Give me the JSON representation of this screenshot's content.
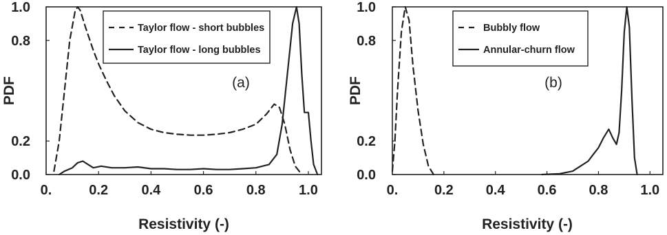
{
  "chart_data": [
    {
      "type": "line",
      "panel_label": "(a)",
      "xlabel": "Resistivity (-)",
      "ylabel": "PDF",
      "xlim": [
        0,
        1.05
      ],
      "ylim": [
        0,
        1.0
      ],
      "x_ticks": [
        {
          "value": 0.0,
          "label": "0."
        },
        {
          "value": 0.2,
          "label": "0.2"
        },
        {
          "value": 0.4,
          "label": "0.4"
        },
        {
          "value": 0.6,
          "label": "0.6"
        },
        {
          "value": 0.8,
          "label": "0.8"
        },
        {
          "value": 1.0,
          "label": "1.0"
        }
      ],
      "y_ticks": [
        {
          "value": 0.0,
          "label": "0.0"
        },
        {
          "value": 0.2,
          "label": "0.2"
        },
        {
          "value": 0.8,
          "label": "0.8"
        },
        {
          "value": 1.0,
          "label": "1.0"
        }
      ],
      "grid": false,
      "legend_position": "top-right",
      "series": [
        {
          "name": "Taylor flow - short bubbles",
          "style": "dashed",
          "color": "#222222",
          "points": [
            [
              0.03,
              0.02
            ],
            [
              0.05,
              0.2
            ],
            [
              0.07,
              0.5
            ],
            [
              0.09,
              0.8
            ],
            [
              0.11,
              0.97
            ],
            [
              0.12,
              1.0
            ],
            [
              0.13,
              0.98
            ],
            [
              0.15,
              0.88
            ],
            [
              0.18,
              0.74
            ],
            [
              0.2,
              0.66
            ],
            [
              0.23,
              0.56
            ],
            [
              0.26,
              0.47
            ],
            [
              0.3,
              0.38
            ],
            [
              0.35,
              0.31
            ],
            [
              0.4,
              0.27
            ],
            [
              0.45,
              0.25
            ],
            [
              0.5,
              0.24
            ],
            [
              0.55,
              0.235
            ],
            [
              0.6,
              0.235
            ],
            [
              0.65,
              0.24
            ],
            [
              0.7,
              0.25
            ],
            [
              0.75,
              0.27
            ],
            [
              0.8,
              0.3
            ],
            [
              0.84,
              0.36
            ],
            [
              0.87,
              0.42
            ],
            [
              0.89,
              0.4
            ],
            [
              0.91,
              0.3
            ],
            [
              0.93,
              0.15
            ],
            [
              0.95,
              0.05
            ],
            [
              0.97,
              0.01
            ]
          ]
        },
        {
          "name": "Taylor flow - long bubbles",
          "style": "solid",
          "color": "#222222",
          "points": [
            [
              0.05,
              0.0
            ],
            [
              0.07,
              0.02
            ],
            [
              0.1,
              0.04
            ],
            [
              0.12,
              0.07
            ],
            [
              0.14,
              0.08
            ],
            [
              0.16,
              0.06
            ],
            [
              0.18,
              0.04
            ],
            [
              0.21,
              0.05
            ],
            [
              0.25,
              0.04
            ],
            [
              0.3,
              0.04
            ],
            [
              0.35,
              0.045
            ],
            [
              0.4,
              0.035
            ],
            [
              0.45,
              0.035
            ],
            [
              0.5,
              0.03
            ],
            [
              0.55,
              0.03
            ],
            [
              0.6,
              0.035
            ],
            [
              0.65,
              0.03
            ],
            [
              0.7,
              0.03
            ],
            [
              0.75,
              0.035
            ],
            [
              0.8,
              0.04
            ],
            [
              0.85,
              0.06
            ],
            [
              0.88,
              0.12
            ],
            [
              0.9,
              0.3
            ],
            [
              0.92,
              0.6
            ],
            [
              0.94,
              0.9
            ],
            [
              0.955,
              1.0
            ],
            [
              0.965,
              0.9
            ],
            [
              0.975,
              0.6
            ],
            [
              0.985,
              0.37
            ],
            [
              1.0,
              0.37
            ],
            [
              1.01,
              0.2
            ],
            [
              1.02,
              0.06
            ],
            [
              1.035,
              0.0
            ]
          ]
        }
      ]
    },
    {
      "type": "line",
      "panel_label": "(b)",
      "xlabel": "Resistivity (-)",
      "ylabel": "PDF",
      "xlim": [
        0,
        1.05
      ],
      "ylim": [
        0,
        1.0
      ],
      "x_ticks": [
        {
          "value": 0.0,
          "label": "0."
        },
        {
          "value": 0.2,
          "label": "0.2"
        },
        {
          "value": 0.4,
          "label": "0.4"
        },
        {
          "value": 0.6,
          "label": "0.6"
        },
        {
          "value": 0.8,
          "label": "0.8"
        },
        {
          "value": 1.0,
          "label": "1.0"
        }
      ],
      "y_ticks": [
        {
          "value": 0.0,
          "label": "0.0"
        },
        {
          "value": 0.2,
          "label": "0.2"
        },
        {
          "value": 0.8,
          "label": "0.8"
        },
        {
          "value": 1.0,
          "label": "1.0"
        }
      ],
      "grid": false,
      "legend_position": "top-left",
      "series": [
        {
          "name": "Bubbly flow",
          "style": "dashed",
          "color": "#222222",
          "points": [
            [
              0.0,
              0.02
            ],
            [
              0.01,
              0.2
            ],
            [
              0.02,
              0.5
            ],
            [
              0.035,
              0.85
            ],
            [
              0.05,
              1.0
            ],
            [
              0.065,
              0.92
            ],
            [
              0.08,
              0.65
            ],
            [
              0.1,
              0.38
            ],
            [
              0.12,
              0.18
            ],
            [
              0.14,
              0.05
            ],
            [
              0.16,
              0.0
            ]
          ]
        },
        {
          "name": "Annular-churn flow",
          "style": "solid",
          "color": "#222222",
          "points": [
            [
              0.58,
              0.0
            ],
            [
              0.65,
              0.005
            ],
            [
              0.7,
              0.02
            ],
            [
              0.73,
              0.05
            ],
            [
              0.76,
              0.08
            ],
            [
              0.78,
              0.12
            ],
            [
              0.8,
              0.16
            ],
            [
              0.82,
              0.22
            ],
            [
              0.84,
              0.27
            ],
            [
              0.855,
              0.22
            ],
            [
              0.87,
              0.18
            ],
            [
              0.88,
              0.25
            ],
            [
              0.89,
              0.5
            ],
            [
              0.9,
              0.85
            ],
            [
              0.91,
              1.0
            ],
            [
              0.92,
              0.88
            ],
            [
              0.93,
              0.45
            ],
            [
              0.94,
              0.1
            ],
            [
              0.95,
              0.0
            ]
          ]
        }
      ]
    }
  ]
}
